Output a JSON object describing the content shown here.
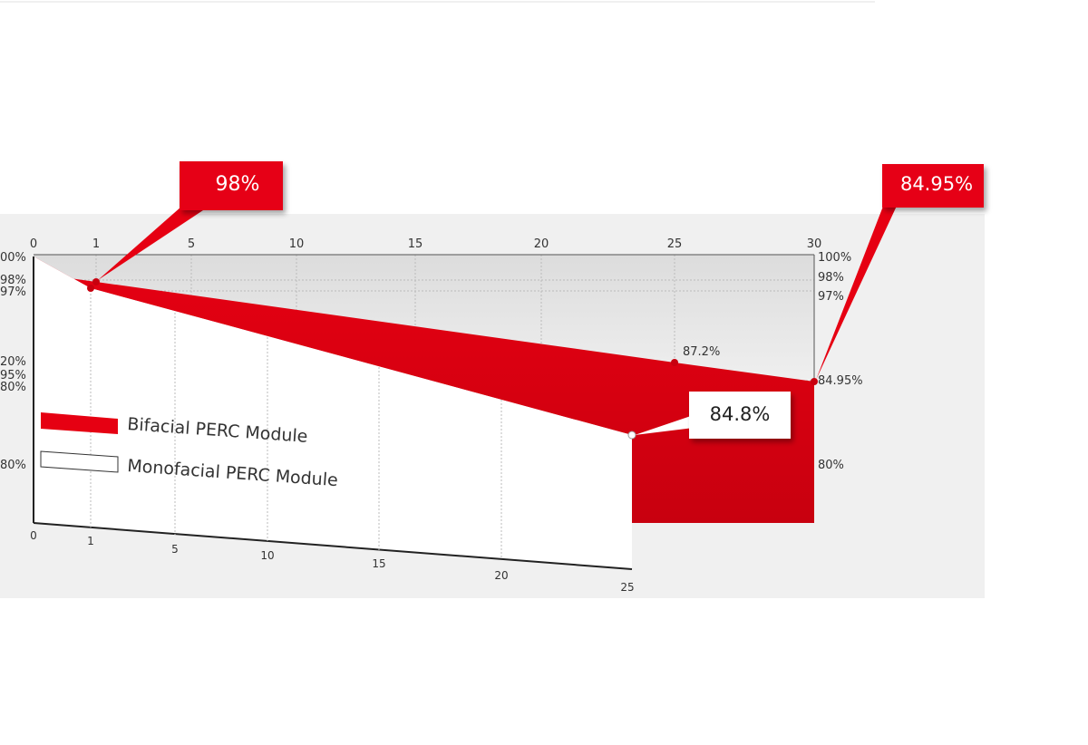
{
  "top_axis": [
    "0",
    "1",
    "5",
    "10",
    "15",
    "20",
    "25",
    "30"
  ],
  "right_axis": [
    "100%",
    "98%",
    "97%",
    "84.95%",
    "80%"
  ],
  "left_axis": [
    "00%",
    "98%",
    "97%",
    "20%",
    "95%",
    "80%",
    "80%"
  ],
  "bottom_axis": [
    "0",
    "1",
    "5",
    "10",
    "15",
    "20",
    "25"
  ],
  "callouts": {
    "bifacial_year1": "98%",
    "bifacial_year30": "84.95%",
    "monofacial_year25": "84.8%",
    "bifacial_year25": "87.2%"
  },
  "legend": [
    "Bifacial PERC Module",
    "Monofacial PERC Module"
  ]
}
